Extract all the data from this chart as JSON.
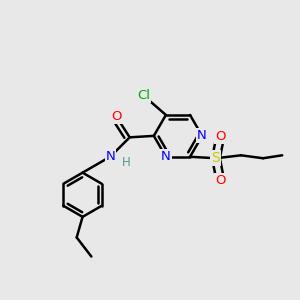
{
  "background_color": "#e8e8e8",
  "bond_color": "#000000",
  "atom_colors": {
    "N": "#0000ff",
    "O": "#ff0000",
    "Cl": "#00aa00",
    "S": "#cccc00",
    "C": "#000000",
    "H": "#4a9a9a"
  },
  "figsize": [
    3.0,
    3.0
  ],
  "dpi": 100
}
